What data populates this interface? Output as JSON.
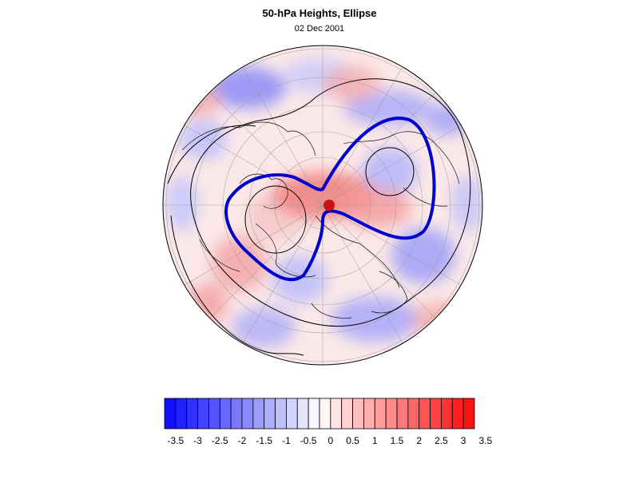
{
  "title": "50-hPa Heights, Ellipse",
  "subtitle": "02 Dec 2001",
  "map": {
    "projection": "polar stereographic, north pole",
    "fill_field": "50-hPa height anomaly",
    "contour_color": "#0000cc",
    "pole_marker_color": "#cc1111"
  },
  "colorbar": {
    "min": -3.5,
    "max": 3.5,
    "step": 0.25,
    "low_color": "#1010ff",
    "mid_color": "#ffffff",
    "high_color": "#ff1010",
    "tick_labels": [
      "-3.5",
      "-3",
      "-2.5",
      "-2",
      "-1.5",
      "-1",
      "-0.5",
      "0",
      "0.5",
      "1",
      "1.5",
      "2",
      "2.5",
      "3",
      "3.5"
    ]
  }
}
